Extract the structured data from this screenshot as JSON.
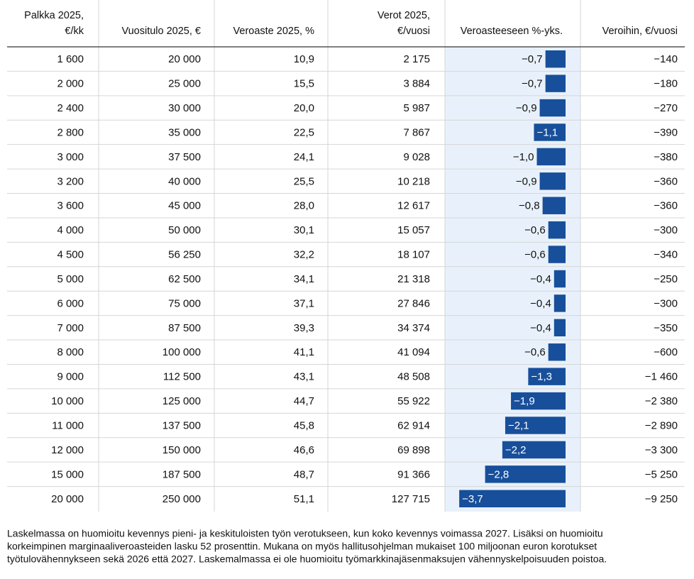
{
  "table": {
    "header": [
      [
        "Palkka 2025,",
        "€/kk"
      ],
      [
        "Vuositulo 2025, €"
      ],
      [
        "Veroaste 2025, %"
      ],
      [
        "Verot 2025,",
        "€/vuosi"
      ],
      [
        "Veroasteeseen %-yks."
      ],
      [
        "Veroihin, €/vuosi"
      ]
    ],
    "rows": [
      [
        "1 600",
        "20 000",
        "10,9",
        "2 175",
        {
          "value": -0.7,
          "label": "−0,7"
        },
        "−140"
      ],
      [
        "2 000",
        "25 000",
        "15,5",
        "3 884",
        {
          "value": -0.7,
          "label": "−0,7"
        },
        "−180"
      ],
      [
        "2 400",
        "30 000",
        "20,0",
        "5 987",
        {
          "value": -0.9,
          "label": "−0,9"
        },
        "−270"
      ],
      [
        "2 800",
        "35 000",
        "22,5",
        "7 867",
        {
          "value": -1.1,
          "label": "−1,1"
        },
        "−390"
      ],
      [
        "3 000",
        "37 500",
        "24,1",
        "9 028",
        {
          "value": -1.0,
          "label": "−1,0"
        },
        "−380"
      ],
      [
        "3 200",
        "40 000",
        "25,5",
        "10 218",
        {
          "value": -0.9,
          "label": "−0,9"
        },
        "−360"
      ],
      [
        "3 600",
        "45 000",
        "28,0",
        "12 617",
        {
          "value": -0.8,
          "label": "−0,8"
        },
        "−360"
      ],
      [
        "4 000",
        "50 000",
        "30,1",
        "15 057",
        {
          "value": -0.6,
          "label": "−0,6"
        },
        "−300"
      ],
      [
        "4 500",
        "56 250",
        "32,2",
        "18 107",
        {
          "value": -0.6,
          "label": "−0,6"
        },
        "−340"
      ],
      [
        "5 000",
        "62 500",
        "34,1",
        "21 318",
        {
          "value": -0.4,
          "label": "−0,4"
        },
        "−250"
      ],
      [
        "6 000",
        "75 000",
        "37,1",
        "27 846",
        {
          "value": -0.4,
          "label": "−0,4"
        },
        "−300"
      ],
      [
        "7 000",
        "87 500",
        "39,3",
        "34 374",
        {
          "value": -0.4,
          "label": "−0,4"
        },
        "−350"
      ],
      [
        "8 000",
        "100 000",
        "41,1",
        "41 094",
        {
          "value": -0.6,
          "label": "−0,6"
        },
        "−600"
      ],
      [
        "9 000",
        "112 500",
        "43,1",
        "48 508",
        {
          "value": -1.3,
          "label": "−1,3"
        },
        "−1 460"
      ],
      [
        "10 000",
        "125 000",
        "44,7",
        "55 922",
        {
          "value": -1.9,
          "label": "−1,9"
        },
        "−2 380"
      ],
      [
        "11 000",
        "137 500",
        "45,8",
        "62 914",
        {
          "value": -2.1,
          "label": "−2,1"
        },
        "−2 890"
      ],
      [
        "12 000",
        "150 000",
        "46,6",
        "69 898",
        {
          "value": -2.2,
          "label": "−2,2"
        },
        "−3 300"
      ],
      [
        "15 000",
        "187 500",
        "48,7",
        "91 366",
        {
          "value": -2.8,
          "label": "−2,8"
        },
        "−5 250"
      ],
      [
        "20 000",
        "250 000",
        "51,1",
        "127 715",
        {
          "value": -3.7,
          "label": "−3,7"
        },
        "−9 250"
      ]
    ]
  },
  "footnote": [
    "Laskelmassa on huomioitu kevennys pieni- ja keskituloisten työn verotukseen, kun koko kevennys voimassa 2027. Lisäksi on huomioitu",
    "korkeimpinen marginaaliveroasteiden lasku 52 prosenttin. Mukana on myös hallitusohjelman mukaiset 100 miljoonan euron korotukset",
    "työtulovähennykseen sekä 2026 että 2027. Laskemalmassa ei ole huomioitu työmarkkinajäsenmaksujen vähennyskelpoisuuden poistoa."
  ]
}
